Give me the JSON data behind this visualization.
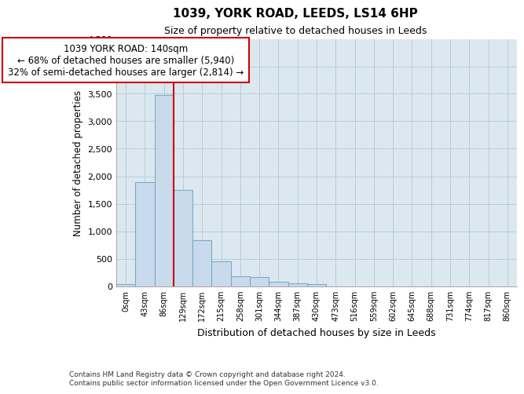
{
  "title": "1039, YORK ROAD, LEEDS, LS14 6HP",
  "subtitle": "Size of property relative to detached houses in Leeds",
  "xlabel": "Distribution of detached houses by size in Leeds",
  "ylabel": "Number of detached properties",
  "bar_color": "#c8daec",
  "bar_edge_color": "#7aaac8",
  "vline_color": "#cc0000",
  "vline_x": 3,
  "annotation_text": "1039 YORK ROAD: 140sqm\n← 68% of detached houses are smaller (5,940)\n32% of semi-detached houses are larger (2,814) →",
  "annotation_box_color": "#ffffff",
  "annotation_box_edge": "#cc0000",
  "bins": [
    "0sqm",
    "43sqm",
    "86sqm",
    "129sqm",
    "172sqm",
    "215sqm",
    "258sqm",
    "301sqm",
    "344sqm",
    "387sqm",
    "430sqm",
    "473sqm",
    "516sqm",
    "559sqm",
    "602sqm",
    "645sqm",
    "688sqm",
    "731sqm",
    "774sqm",
    "817sqm",
    "860sqm"
  ],
  "values": [
    30,
    1900,
    3480,
    1750,
    840,
    450,
    175,
    165,
    85,
    55,
    40,
    0,
    0,
    0,
    0,
    0,
    0,
    0,
    0,
    0,
    0
  ],
  "ylim": [
    0,
    4500
  ],
  "yticks": [
    0,
    500,
    1000,
    1500,
    2000,
    2500,
    3000,
    3500,
    4000,
    4500
  ],
  "footer_line1": "Contains HM Land Registry data © Crown copyright and database right 2024.",
  "footer_line2": "Contains public sector information licensed under the Open Government Licence v3.0.",
  "bg_color": "#ffffff",
  "plot_bg_color": "#dce8f0",
  "grid_color": "#b8ccd8"
}
